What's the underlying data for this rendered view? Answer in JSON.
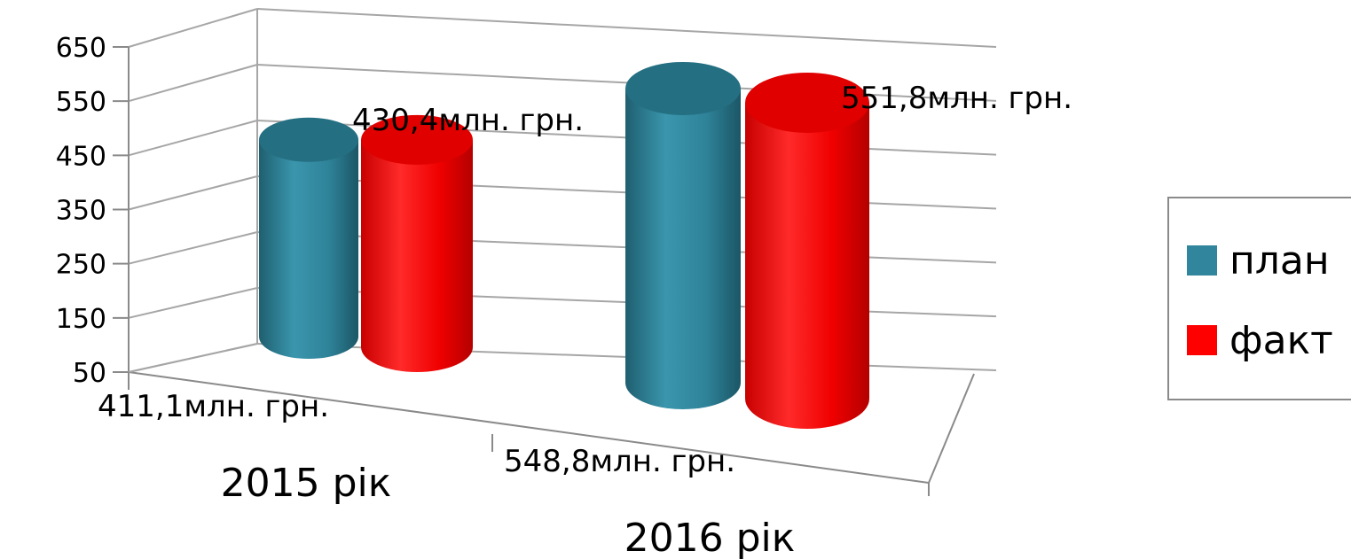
{
  "chart_data": {
    "type": "bar",
    "style": "3d-cylinder",
    "categories": [
      "2015 рік",
      "2016 рік"
    ],
    "series": [
      {
        "name": "план",
        "color": "#31859c",
        "values": [
          411.1,
          548.8
        ],
        "labels": [
          "411,1млн. грн.",
          "548,8млн. грн."
        ]
      },
      {
        "name": "факт",
        "color": "#ff0000",
        "values": [
          430.4,
          551.8
        ],
        "labels": [
          "430,4млн. грн.",
          "551,8млн. грн."
        ]
      }
    ],
    "ylim": [
      50,
      650
    ],
    "yticks": [
      50,
      150,
      250,
      350,
      450,
      550,
      650
    ],
    "grid": true,
    "legend_position": "right",
    "xlabel": "",
    "ylabel": ""
  }
}
